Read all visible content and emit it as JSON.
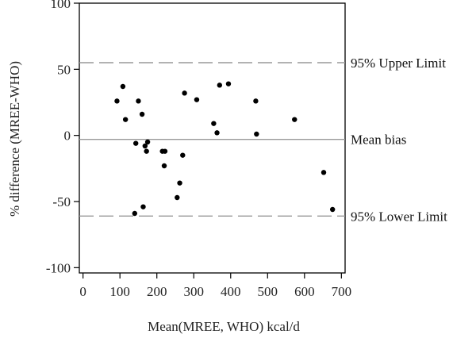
{
  "chart_data": {
    "type": "scatter",
    "xlabel": "Mean(MREE, WHO) kcal/d",
    "ylabel": "% difference (MREE-WHO)",
    "xlim": [
      -10,
      710
    ],
    "ylim": [
      -104,
      100
    ],
    "x_ticks": [
      0,
      100,
      200,
      300,
      400,
      500,
      600,
      700
    ],
    "y_ticks": [
      100,
      50,
      0,
      -50,
      -100
    ],
    "grid": false,
    "point_color": "#000000",
    "points": [
      {
        "x": 92,
        "y": 26
      },
      {
        "x": 108,
        "y": 37
      },
      {
        "x": 115,
        "y": 12
      },
      {
        "x": 143,
        "y": -6
      },
      {
        "x": 150,
        "y": 26
      },
      {
        "x": 160,
        "y": 16
      },
      {
        "x": 163,
        "y": -54
      },
      {
        "x": 168,
        "y": -8
      },
      {
        "x": 172,
        "y": -12
      },
      {
        "x": 175,
        "y": -5
      },
      {
        "x": 140,
        "y": -59
      },
      {
        "x": 215,
        "y": -12
      },
      {
        "x": 222,
        "y": -12
      },
      {
        "x": 220,
        "y": -23
      },
      {
        "x": 255,
        "y": -47
      },
      {
        "x": 262,
        "y": -36
      },
      {
        "x": 270,
        "y": -15
      },
      {
        "x": 275,
        "y": 32
      },
      {
        "x": 308,
        "y": 27
      },
      {
        "x": 354,
        "y": 9
      },
      {
        "x": 363,
        "y": 2
      },
      {
        "x": 370,
        "y": 38
      },
      {
        "x": 394,
        "y": 39
      },
      {
        "x": 468,
        "y": 26
      },
      {
        "x": 470,
        "y": 1
      },
      {
        "x": 573,
        "y": 12
      },
      {
        "x": 652,
        "y": -28
      },
      {
        "x": 676,
        "y": -56
      }
    ],
    "reference_lines": [
      {
        "label": "95% Upper Limit",
        "y": 55,
        "style": "dashed",
        "color": "#999999"
      },
      {
        "label": "Mean bias",
        "y": -3,
        "style": "solid",
        "color": "#999999"
      },
      {
        "label": "95% Lower Limit",
        "y": -61,
        "style": "dashed",
        "color": "#999999"
      }
    ]
  }
}
